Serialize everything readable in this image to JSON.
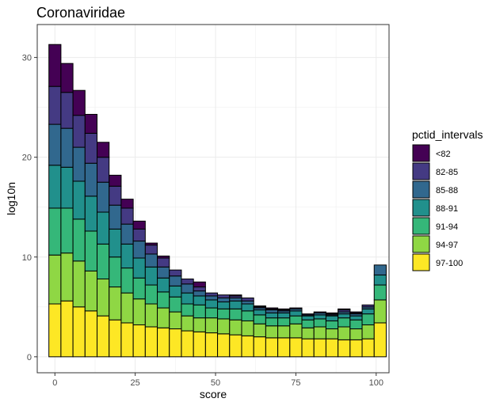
{
  "chart_data": {
    "type": "bar",
    "stacked": true,
    "title": "Coronaviridae",
    "xlabel": "score",
    "ylabel": "log10n",
    "xlim": [
      -5.5,
      104
    ],
    "ylim": [
      -1.6,
      33.3
    ],
    "xticks": [
      0,
      25,
      50,
      75,
      100
    ],
    "yticks": [
      0,
      10,
      20,
      30
    ],
    "grid": true,
    "legend_position": "right",
    "legend_title": "pctid_intervals",
    "x": [
      0,
      3.75,
      7.5,
      11.25,
      15,
      18.75,
      22.5,
      26.25,
      30,
      33.75,
      37.5,
      41.25,
      45,
      48.75,
      52.5,
      56.25,
      60,
      63.75,
      67.5,
      71.25,
      75,
      78.75,
      82.5,
      86.25,
      90,
      93.75,
      97.5,
      101.25
    ],
    "series": [
      {
        "name": "97-100",
        "color": "#FDE725",
        "values": [
          5.3,
          5.6,
          5.0,
          4.6,
          4.1,
          3.7,
          3.4,
          3.2,
          3.0,
          2.9,
          2.8,
          2.6,
          2.5,
          2.4,
          2.3,
          2.2,
          2.1,
          2.0,
          1.9,
          1.9,
          1.9,
          1.8,
          1.8,
          1.8,
          1.7,
          1.7,
          1.8,
          3.4
        ]
      },
      {
        "name": "94-97",
        "color": "#8FD744",
        "values": [
          4.9,
          4.8,
          4.6,
          4.0,
          3.7,
          3.3,
          3.0,
          2.6,
          2.3,
          2.0,
          1.7,
          1.5,
          1.4,
          1.5,
          1.5,
          1.5,
          1.5,
          1.3,
          1.2,
          1.2,
          1.4,
          1.1,
          1.2,
          1.0,
          1.3,
          1.1,
          1.4,
          2.3
        ]
      },
      {
        "name": "91-94",
        "color": "#35B779",
        "values": [
          4.7,
          4.5,
          4.2,
          4.0,
          3.5,
          3.0,
          2.5,
          2.1,
          1.9,
          1.6,
          1.5,
          1.2,
          1.3,
          1.0,
          1.0,
          1.1,
          1.0,
          0.9,
          0.8,
          0.8,
          0.8,
          0.8,
          0.8,
          0.8,
          0.9,
          0.9,
          1.1,
          1.5
        ]
      },
      {
        "name": "88-91",
        "color": "#21908C",
        "values": [
          4.3,
          4.1,
          3.8,
          3.5,
          3.2,
          2.8,
          2.4,
          2.0,
          1.8,
          1.4,
          1.1,
          1.1,
          0.9,
          0.8,
          0.7,
          0.8,
          0.7,
          0.5,
          0.5,
          0.5,
          0.5,
          0.4,
          0.4,
          0.5,
          0.4,
          0.4,
          0.5,
          1.0
        ]
      },
      {
        "name": "85-88",
        "color": "#31688E",
        "values": [
          4.1,
          3.9,
          3.4,
          3.3,
          3.0,
          2.4,
          2.0,
          1.7,
          1.3,
          1.1,
          1.0,
          0.9,
          0.5,
          0.4,
          0.4,
          0.3,
          0.3,
          0.2,
          0.3,
          0.2,
          0.2,
          0.1,
          0.2,
          0.1,
          0.2,
          0.2,
          0.2,
          1.0
        ]
      },
      {
        "name": "82-85",
        "color": "#443A83",
        "values": [
          3.8,
          3.6,
          3.2,
          3.0,
          2.5,
          1.9,
          1.6,
          1.2,
          0.9,
          0.9,
          0.6,
          0.5,
          0.4,
          0.3,
          0.3,
          0.2,
          0.3,
          0.1,
          0.1,
          0.1,
          0.1,
          0.1,
          0.1,
          0.1,
          0.2,
          0.1,
          0.2,
          0.0
        ]
      },
      {
        "name": "<82",
        "color": "#440154",
        "values": [
          4.2,
          2.9,
          2.5,
          1.9,
          1.5,
          1.1,
          0.9,
          0.8,
          0.2,
          0.2,
          0.0,
          0.0,
          0.5,
          0.0,
          0.0,
          0.1,
          0.0,
          0.1,
          0.1,
          0.1,
          0.0,
          0.0,
          0.0,
          0.1,
          0.1,
          0.1,
          0.0,
          0.0
        ]
      }
    ]
  }
}
